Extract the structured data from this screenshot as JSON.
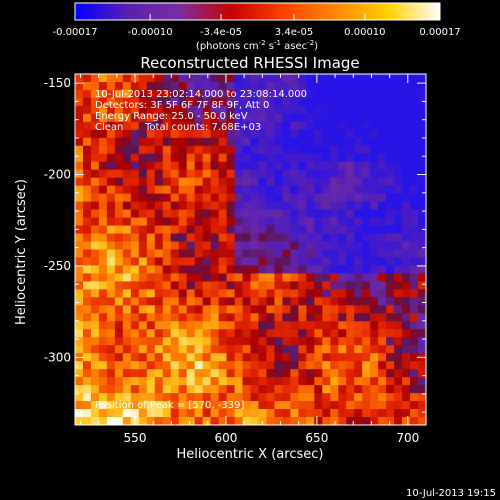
{
  "colorbar": {
    "tick_labels": [
      "-0.00017",
      "-0.00010",
      "-3.4e-05",
      "3.4e-05",
      "0.00010",
      "0.00017"
    ],
    "ticks": [
      -0.00017,
      -0.0001,
      -3.4e-05,
      3.4e-05,
      0.0001,
      0.00017
    ],
    "range": [
      -0.00017,
      0.00017
    ],
    "units_prefix": "(photons cm",
    "units_exp1": "-2",
    "units_mid": " s",
    "units_exp2": "-1",
    "units_mid2": " asec",
    "units_exp3": "-2",
    "units_suffix": ")",
    "colors": [
      "#0000ff",
      "#5a1fb0",
      "#7a2ea0",
      "#c80000",
      "#ff4000",
      "#ff8800",
      "#ffd000",
      "#ffffff"
    ]
  },
  "chart_data": {
    "type": "heatmap",
    "title": "Reconstructed RHESSI Image",
    "xlabel": "Heliocentric X (arcsec)",
    "ylabel": "Heliocentric Y (arcsec)",
    "xlim": [
      517,
      710
    ],
    "ylim": [
      -337,
      -145
    ],
    "xticks": [
      550,
      600,
      650,
      700
    ],
    "yticks": [
      -150,
      -200,
      -250,
      -300
    ],
    "xtick_labels": [
      "550",
      "600",
      "650",
      "700"
    ],
    "ytick_labels": [
      "-150",
      "-200",
      "-250",
      "-300"
    ],
    "annotations": {
      "line1": "10-Jul-2013 23:02:14.000 to 23:08:14.000",
      "line2": "Detectors: 3F 5F 6F 7F 8F 9F, Att 0",
      "line3": "Energy Range: 25.0 - 50.0 keV",
      "line4_a": "Clean",
      "line4_b": "Total counts: 7.68E+03",
      "peak": "Position of Peak = [570, -339]"
    },
    "peak_position": [
      570,
      -339
    ],
    "total_counts": 7680,
    "energy_range_kev": [
      25.0,
      50.0
    ],
    "footer_timestamp": "10-Jul-2013 19:15"
  }
}
